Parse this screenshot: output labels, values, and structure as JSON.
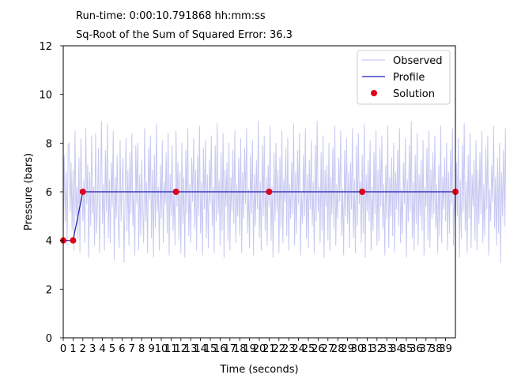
{
  "header": {
    "runtime": "Run-time: 0:00:10.791868 hh:mm:ss",
    "error": "Sq-Root of the Sum of Squared Error: 36.3"
  },
  "chart_data": {
    "type": "line",
    "xlabel": "Time (seconds)",
    "ylabel": "Pressure (bars)",
    "xlim": [
      0,
      40
    ],
    "ylim": [
      0,
      12
    ],
    "xticks": [
      0,
      1,
      2,
      3,
      4,
      5,
      6,
      7,
      8,
      9,
      10,
      11,
      12,
      13,
      14,
      15,
      16,
      17,
      18,
      19,
      20,
      21,
      22,
      23,
      24,
      25,
      26,
      27,
      28,
      29,
      30,
      31,
      32,
      33,
      34,
      35,
      36,
      37,
      38,
      39
    ],
    "yticks": [
      0,
      2,
      4,
      6,
      8,
      10,
      12
    ],
    "grid": false,
    "legend": {
      "placement": "top-right",
      "entries": [
        {
          "label": "Observed",
          "kind": "line",
          "color": "#c8c8f2"
        },
        {
          "label": "Profile",
          "kind": "line",
          "color": "#1c1cb0"
        },
        {
          "label": "Solution",
          "kind": "marker",
          "color": "#e0001b"
        }
      ]
    },
    "series": [
      {
        "name": "Observed",
        "color": "#c8c8f2",
        "x_start": 0,
        "x_step": 0.1,
        "values": [
          4.2,
          7.5,
          4.8,
          6.8,
          3.8,
          7.9,
          8.0,
          5.2,
          7.2,
          4.4,
          6.9,
          3.6,
          8.5,
          5.0,
          6.2,
          4.1,
          7.4,
          3.5,
          8.2,
          5.9,
          4.8,
          6.5,
          3.9,
          8.6,
          5.5,
          7.1,
          3.3,
          6.8,
          4.6,
          8.3,
          5.1,
          6.2,
          3.8,
          8.4,
          4.3,
          5.6,
          7.8,
          3.5,
          6.1,
          8.9,
          4.7,
          6.3,
          3.6,
          7.7,
          5.2,
          8.8,
          4.1,
          6.5,
          3.9,
          7.2,
          5.4,
          8.5,
          3.2,
          6.6,
          4.9,
          7.5,
          5.0,
          3.7,
          8.1,
          4.8,
          6.3,
          7.4,
          3.1,
          5.6,
          8.2,
          4.4,
          6.9,
          3.8,
          7.6,
          5.1,
          8.4,
          4.6,
          6.0,
          3.4,
          7.9,
          5.5,
          8.0,
          3.6,
          6.7,
          4.2,
          7.3,
          5.3,
          3.9,
          8.6,
          4.8,
          6.4,
          3.5,
          7.8,
          5.7,
          8.3,
          4.1,
          6.9,
          3.3,
          7.5,
          4.5,
          8.8,
          5.2,
          6.2,
          3.6,
          7.1,
          4.9,
          8.1,
          3.9,
          6.4,
          5.5,
          7.6,
          4.3,
          8.4,
          3.4,
          6.7,
          5.0,
          7.9,
          4.4,
          6.1,
          3.8,
          8.5,
          5.4,
          7.2,
          4.0,
          6.8,
          3.5,
          8.0,
          4.7,
          6.6,
          3.3,
          7.7,
          5.1,
          8.6,
          4.2,
          6.3,
          3.9,
          7.4,
          5.6,
          8.2,
          4.5,
          6.9,
          3.6,
          7.5,
          5.0,
          8.7,
          4.3,
          6.4,
          3.4,
          7.8,
          5.3,
          8.1,
          4.1,
          6.7,
          3.7,
          7.3,
          5.5,
          8.3,
          4.6,
          6.2,
          3.5,
          7.9,
          4.8,
          8.8,
          5.1,
          6.5,
          3.8,
          7.6,
          4.4,
          8.4,
          3.3,
          6.9,
          5.4,
          7.2,
          4.0,
          8.0,
          3.6,
          6.6,
          5.2,
          7.7,
          4.7,
          8.5,
          3.9,
          6.3,
          5.0,
          7.4,
          4.2,
          8.2,
          3.5,
          6.8,
          4.9,
          7.8,
          5.5,
          8.6,
          4.3,
          6.1,
          3.7,
          7.5,
          5.1,
          8.1,
          3.4,
          6.7,
          4.6,
          7.3,
          5.3,
          8.9,
          4.1,
          6.4,
          3.6,
          7.9,
          5.0,
          8.3,
          4.4,
          6.6,
          3.8,
          7.1,
          5.4,
          8.7,
          4.0,
          6.2,
          3.3,
          7.6,
          4.8,
          8.0,
          5.2,
          6.9,
          3.5,
          7.4,
          4.5,
          8.5,
          3.9,
          6.5,
          5.6,
          7.8,
          4.2,
          8.2,
          3.6,
          6.3,
          4.9,
          7.2,
          5.1,
          8.8,
          3.8,
          6.8,
          4.3,
          7.7,
          5.5,
          8.4,
          3.4,
          6.0,
          4.7,
          7.5,
          5.0,
          8.6,
          4.1,
          6.7,
          3.7,
          7.3,
          5.3,
          8.1,
          4.6,
          6.4,
          3.5,
          7.9,
          4.8,
          8.9,
          5.2,
          6.2,
          3.9,
          7.6,
          4.4,
          8.3,
          3.3,
          6.9,
          5.4,
          7.1,
          4.0,
          8.0,
          3.6,
          6.6,
          5.1,
          7.8,
          4.5,
          8.7,
          3.8,
          6.3,
          4.9,
          7.4,
          5.6,
          8.5,
          4.2,
          6.1,
          3.4,
          7.7,
          5.0,
          8.2,
          4.7,
          6.8,
          3.7,
          7.2,
          5.3,
          8.6,
          4.1,
          6.5,
          3.5,
          7.9,
          4.6,
          8.4,
          5.5,
          6.4,
          3.9,
          7.5,
          4.3,
          8.8,
          3.3,
          6.7,
          5.2,
          7.3,
          4.8,
          8.1,
          3.6,
          6.2,
          4.4,
          7.6,
          5.1,
          8.5,
          3.8,
          6.9,
          4.0,
          7.8,
          5.4,
          8.3,
          4.5,
          6.3,
          3.4,
          7.1,
          4.9,
          8.7,
          3.7,
          6.6,
          5.0,
          7.4,
          4.2,
          8.0,
          3.5,
          6.8,
          5.3,
          7.7,
          4.6,
          8.6,
          3.9,
          6.1,
          4.3,
          7.2,
          5.5,
          8.2,
          3.3,
          6.5,
          4.8,
          7.9,
          5.2,
          8.9,
          4.1,
          6.4,
          3.6,
          7.5,
          4.7,
          8.4,
          3.8,
          6.7,
          5.0,
          7.3,
          4.4,
          8.1,
          3.4,
          6.2,
          5.4,
          7.8,
          4.0,
          8.5,
          3.7,
          6.9,
          4.9,
          7.6,
          5.1,
          8.3,
          4.5,
          6.3,
          3.5,
          7.1,
          4.2,
          8.7,
          3.9,
          6.6,
          5.3,
          7.4,
          4.8,
          8.0,
          3.6,
          6.8,
          4.3,
          7.7,
          5.5,
          8.6,
          3.8,
          6.0,
          4.6,
          7.2,
          5.0,
          8.2,
          3.3,
          6.5,
          4.1,
          7.9,
          5.2,
          8.8,
          4.4,
          6.4,
          3.5,
          7.5,
          4.9,
          8.4,
          3.7,
          6.7,
          5.4,
          7.3,
          4.0,
          8.1,
          3.6,
          6.9,
          4.7,
          7.6,
          5.1,
          8.5,
          3.9,
          6.3,
          4.2,
          7.8,
          5.3,
          8.3,
          3.4,
          6.1,
          4.8,
          7.1,
          5.6,
          8.7,
          4.5,
          6.6,
          3.8,
          7.4,
          4.3,
          8.0,
          3.1,
          6.8,
          5.0,
          7.7,
          4.6,
          8.6,
          3.9,
          6.2,
          5.2,
          7.5,
          7.9
        ]
      },
      {
        "name": "Profile",
        "color": "#1c1cb0",
        "x": [
          0,
          1,
          2,
          11.5,
          21,
          30.5,
          40
        ],
        "y": [
          4,
          4,
          6,
          6,
          6,
          6,
          6
        ]
      },
      {
        "name": "Solution",
        "color": "#e0001b",
        "x": [
          0,
          1,
          2,
          11.5,
          21,
          30.5,
          40
        ],
        "y": [
          4,
          4,
          6,
          6,
          6,
          6,
          6
        ]
      }
    ]
  }
}
